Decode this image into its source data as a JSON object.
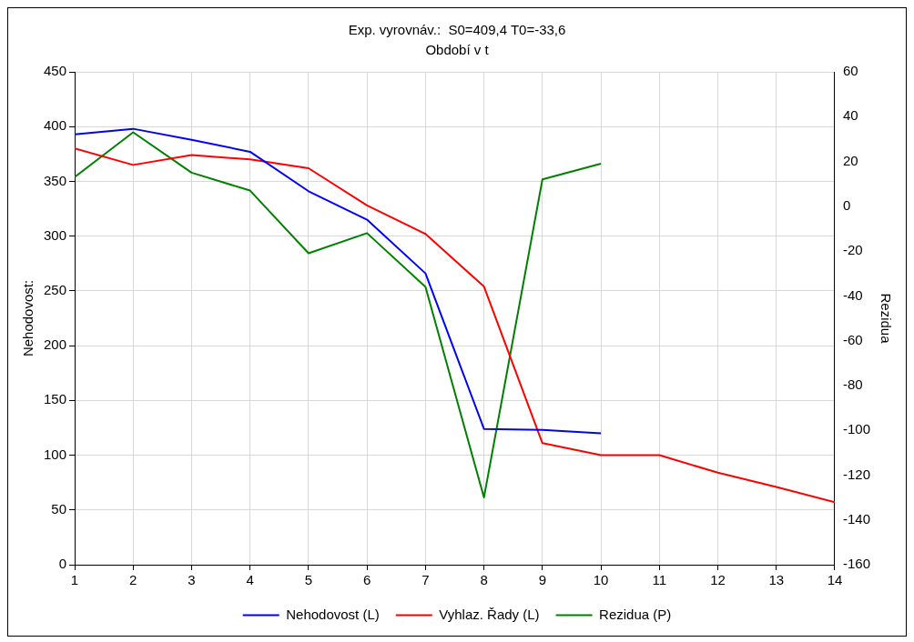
{
  "chart_data": {
    "type": "line",
    "title": "Exp. vyrovnáv.:  S0=409,4 T0=-33,6",
    "subtitle": "Období v t",
    "ylabel": "Nehodovost:",
    "y2label": "Rezidua",
    "x": [
      1,
      2,
      3,
      4,
      5,
      6,
      7,
      8,
      9,
      10,
      11,
      12,
      13,
      14
    ],
    "series": [
      {
        "name": "Nehodovost (L)",
        "color": "#0000ff",
        "x": [
          1,
          2,
          3,
          4,
          5,
          6,
          7,
          8,
          9,
          10
        ],
        "values": [
          393,
          398,
          388,
          377,
          341,
          315,
          266,
          124,
          123,
          120
        ]
      },
      {
        "name": "Vyhlaz. Řady (L)",
        "color": "#ff0000",
        "values": [
          380,
          365,
          374,
          370,
          362,
          328,
          302,
          254,
          111,
          100,
          100,
          84,
          71,
          57
        ]
      },
      {
        "name": "Rezidua (P)",
        "color": "#008000",
        "axis": "y2",
        "x": [
          1,
          2,
          3,
          4,
          5,
          6,
          7,
          8,
          9,
          10
        ],
        "values": [
          13,
          33,
          15,
          7,
          -21,
          -12,
          -36,
          -130,
          12,
          19
        ]
      }
    ],
    "xlim": [
      1,
      14
    ],
    "xticks": [
      1,
      2,
      3,
      4,
      5,
      6,
      7,
      8,
      9,
      10,
      11,
      12,
      13,
      14
    ],
    "ylim": [
      0,
      450
    ],
    "yticks": [
      0,
      50,
      100,
      150,
      200,
      250,
      300,
      350,
      400,
      450
    ],
    "y2lim": [
      -160,
      60
    ],
    "y2ticks": [
      -160,
      -140,
      -120,
      -100,
      -80,
      -60,
      -40,
      -20,
      0,
      20,
      40,
      60
    ],
    "grid": true,
    "legend": "bottom",
    "marker": "none",
    "line_style": "solid"
  }
}
